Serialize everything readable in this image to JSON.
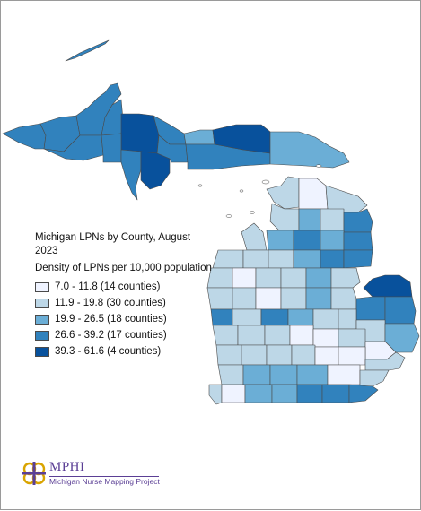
{
  "map": {
    "title": "Michigan LPNs by County, August 2023",
    "subtitle": "Density of LPNs per 10,000 population",
    "legend": [
      {
        "label": "7.0 - 11.8 (14 counties)",
        "color": "#eff3ff"
      },
      {
        "label": "11.9 - 19.8 (30 counties)",
        "color": "#bdd7e7"
      },
      {
        "label": "19.9 - 26.5 (18 counties)",
        "color": "#6baed6"
      },
      {
        "label": "26.6 - 39.2 (17 counties)",
        "color": "#3182bd"
      },
      {
        "label": "39.3 - 61.6 (4 counties)",
        "color": "#08519c"
      }
    ]
  },
  "footer": {
    "logo_text": "MPHI",
    "project_name": "Michigan Nurse Mapping Project"
  },
  "colors": {
    "border": "#4a4a4a",
    "brand": "#5b3f95",
    "brand_gold": "#d9a400"
  }
}
